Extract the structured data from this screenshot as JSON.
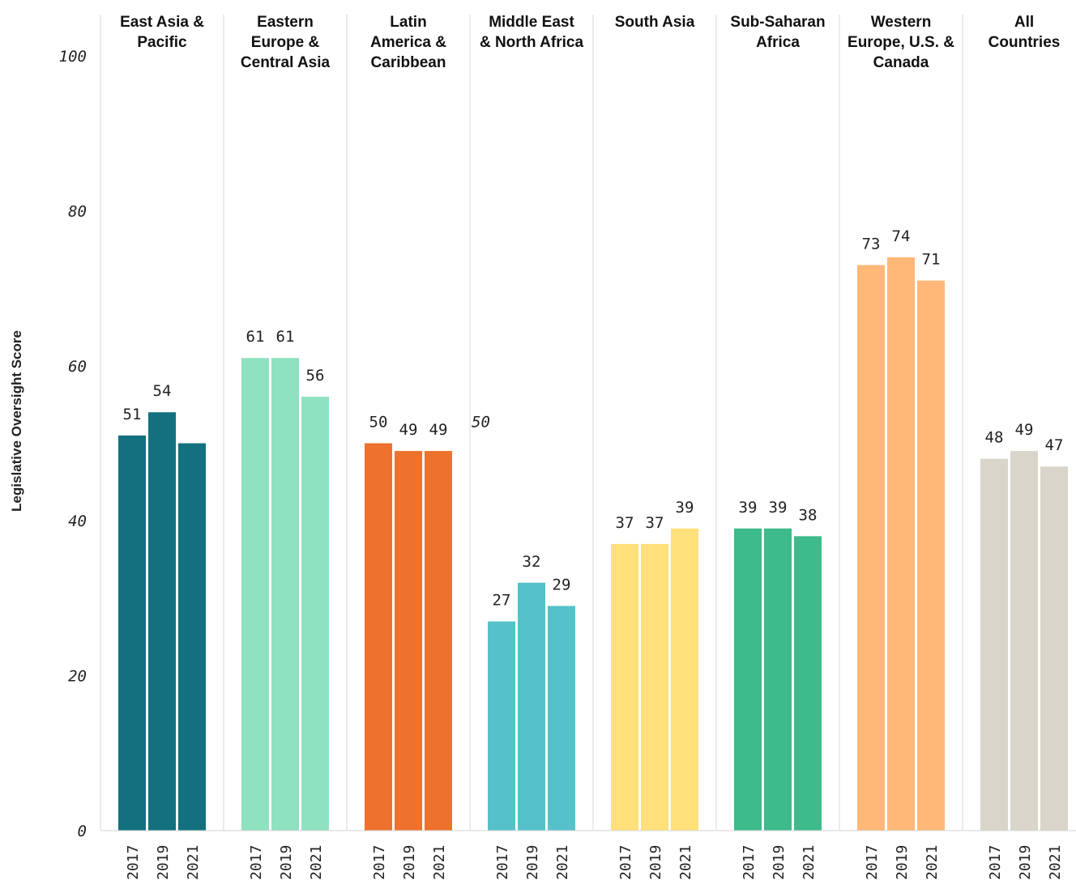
{
  "chart_data": {
    "type": "bar",
    "ylabel": "Legislative Oversight Score",
    "ylim": [
      0,
      100
    ],
    "yticks": [
      0,
      20,
      40,
      60,
      80,
      100
    ],
    "categories": [
      "2017",
      "2019",
      "2021"
    ],
    "panels": [
      {
        "title": [
          "East Asia &",
          "Pacific"
        ],
        "color": "#13707f",
        "values": [
          51,
          54,
          50
        ],
        "labels": [
          "51",
          "54",
          ""
        ]
      },
      {
        "title": [
          "Eastern",
          "Europe &",
          "Central Asia"
        ],
        "color": "#8ee2c0",
        "values": [
          61,
          61,
          56
        ],
        "labels": [
          "61",
          "61",
          "56"
        ]
      },
      {
        "title": [
          "Latin",
          "America &",
          "Caribbean"
        ],
        "color": "#ec722d",
        "values": [
          50,
          49,
          49
        ],
        "labels": [
          "50",
          "49",
          "49"
        ]
      },
      {
        "title": [
          "Middle East",
          "& North Africa"
        ],
        "color": "#55c2c9",
        "values": [
          27,
          32,
          29
        ],
        "labels": [
          "27",
          "32",
          "29"
        ]
      },
      {
        "title": [
          "South Asia"
        ],
        "color": "#ffe07a",
        "values": [
          37,
          37,
          39
        ],
        "labels": [
          "37",
          "37",
          "39"
        ]
      },
      {
        "title": [
          "Sub-Saharan",
          "Africa"
        ],
        "color": "#3dbb8a",
        "values": [
          39,
          39,
          38
        ],
        "labels": [
          "39",
          "39",
          "38"
        ]
      },
      {
        "title": [
          "Western",
          "Europe, U.S. &",
          "Canada"
        ],
        "color": "#ffb877",
        "values": [
          73,
          74,
          71
        ],
        "labels": [
          "73",
          "74",
          "71"
        ]
      },
      {
        "title": [
          "All",
          "Countries"
        ],
        "color": "#d9d5ca",
        "values": [
          48,
          49,
          47
        ],
        "labels": [
          "48",
          "49",
          "47"
        ]
      }
    ],
    "annotations": [
      {
        "text": "50",
        "panel_index": 3,
        "value": 50
      }
    ],
    "grid": false,
    "legend": "none"
  }
}
